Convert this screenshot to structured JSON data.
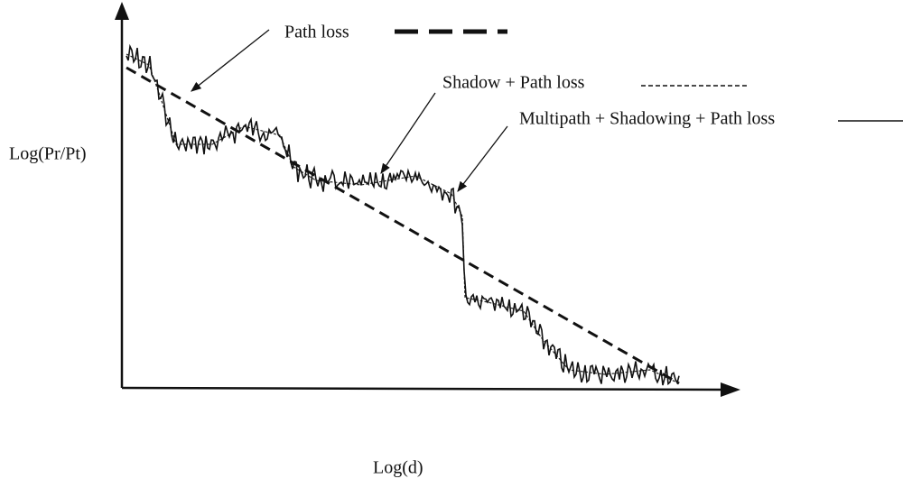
{
  "y_axis_label": "Log(Pr/Pt)",
  "x_axis_label": "Log(d)",
  "legend": [
    {
      "label": "Path loss"
    },
    {
      "label": "Shadow + Path loss"
    },
    {
      "label": "Multipath + Shadowing + Path loss"
    }
  ]
}
